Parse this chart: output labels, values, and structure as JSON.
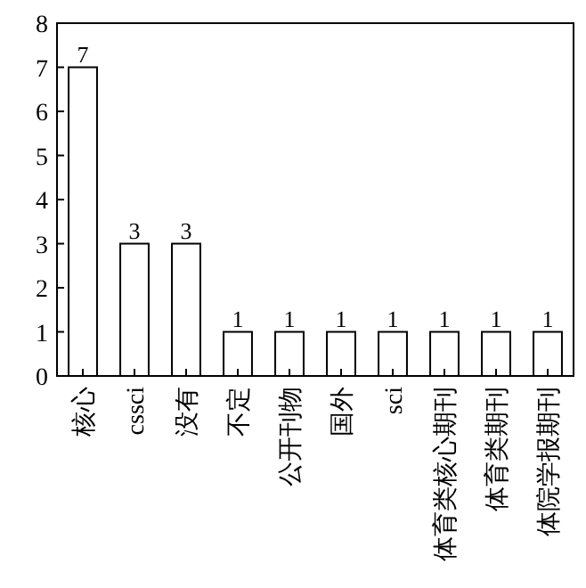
{
  "chart_data": {
    "type": "bar",
    "categories": [
      "核心",
      "cssci",
      "没有",
      "不定",
      "公开刊物",
      "国外",
      "sci",
      "体育类核心期刊",
      "体育类期刊",
      "体院学报期刊"
    ],
    "values": [
      7,
      3,
      3,
      1,
      1,
      1,
      1,
      1,
      1,
      1
    ],
    "color": "#ffffff",
    "ylim": [
      0,
      8
    ],
    "yticks": [
      0,
      1,
      2,
      3,
      4,
      5,
      6,
      7,
      8
    ],
    "data_labels": true
  }
}
